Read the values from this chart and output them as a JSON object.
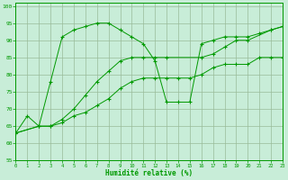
{
  "xlabel": "Humidité relative (%)",
  "bg_color": "#c8edd8",
  "line_color": "#009900",
  "grid_color": "#99bb99",
  "xlim": [
    0,
    23
  ],
  "ylim": [
    55,
    101
  ],
  "yticks": [
    55,
    60,
    65,
    70,
    75,
    80,
    85,
    90,
    95,
    100
  ],
  "xticks": [
    0,
    1,
    2,
    3,
    4,
    5,
    6,
    7,
    8,
    9,
    10,
    11,
    12,
    13,
    14,
    15,
    16,
    17,
    18,
    19,
    20,
    21,
    22,
    23
  ],
  "series": [
    {
      "x": [
        0,
        1,
        2,
        3,
        4,
        5,
        6,
        7,
        8,
        9,
        10,
        11,
        12,
        13,
        14,
        15,
        16,
        17,
        18,
        19,
        20,
        21,
        22,
        23
      ],
      "y": [
        63,
        68,
        65,
        78,
        91,
        93,
        94,
        95,
        95,
        93,
        91,
        89,
        84,
        72,
        72,
        72,
        89,
        90,
        91,
        91,
        91,
        92,
        93,
        94
      ]
    },
    {
      "x": [
        0,
        2,
        3,
        4,
        5,
        6,
        7,
        8,
        9,
        10,
        11,
        12,
        13,
        16,
        17,
        18,
        19,
        20,
        22,
        23
      ],
      "y": [
        63,
        65,
        65,
        67,
        70,
        74,
        78,
        81,
        84,
        85,
        85,
        85,
        85,
        85,
        86,
        88,
        90,
        90,
        93,
        94
      ]
    },
    {
      "x": [
        0,
        2,
        3,
        4,
        5,
        6,
        7,
        8,
        9,
        10,
        11,
        12,
        13,
        14,
        15,
        16,
        17,
        18,
        19,
        20,
        21,
        22,
        23
      ],
      "y": [
        63,
        65,
        65,
        66,
        68,
        69,
        71,
        73,
        76,
        78,
        79,
        79,
        79,
        79,
        79,
        80,
        82,
        83,
        83,
        83,
        85,
        85,
        85
      ]
    }
  ]
}
